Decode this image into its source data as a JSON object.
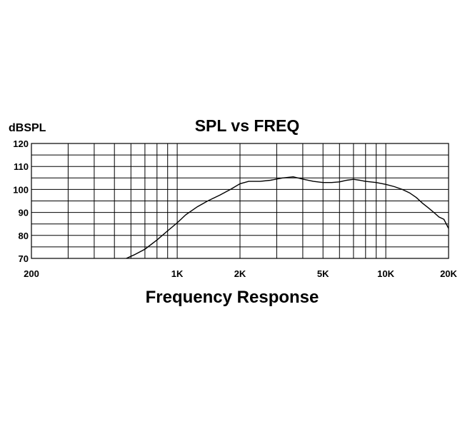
{
  "chart_data": {
    "type": "line",
    "title": "SPL vs FREQ",
    "ylabel": "dBSPL",
    "xlabel": "Frequency Response",
    "x_scale": "log",
    "xlim": [
      200,
      20000
    ],
    "ylim": [
      70,
      120
    ],
    "grid": true,
    "x_tick_labels": [
      {
        "value": 200,
        "label": "200"
      },
      {
        "value": 1000,
        "label": "1K"
      },
      {
        "value": 2000,
        "label": "2K"
      },
      {
        "value": 5000,
        "label": "5K"
      },
      {
        "value": 10000,
        "label": "10K"
      },
      {
        "value": 20000,
        "label": "20K"
      }
    ],
    "y_ticks": [
      70,
      80,
      90,
      100,
      110,
      120
    ],
    "series": [
      {
        "x": [
          570,
          620,
          700,
          800,
          900,
          1000,
          1100,
          1250,
          1400,
          1600,
          1800,
          2000,
          2200,
          2500,
          2800,
          3200,
          3600,
          4000,
          4500,
          5000,
          5500,
          6000,
          6500,
          7000,
          7500,
          8000,
          9000,
          10000,
          11000,
          12000,
          13000,
          14000,
          15000,
          16000,
          17000,
          18000,
          19000,
          20000
        ],
        "y": [
          70,
          71.5,
          74,
          78,
          82,
          85.5,
          89,
          92.5,
          95,
          97.5,
          100,
          102.5,
          103.5,
          103.5,
          104,
          105,
          105.5,
          104.5,
          103.5,
          103,
          103,
          103.3,
          104,
          104.4,
          104,
          103.5,
          103,
          102.2,
          101.2,
          100,
          98.5,
          96.5,
          94,
          92,
          90,
          88,
          87,
          83
        ]
      }
    ]
  }
}
